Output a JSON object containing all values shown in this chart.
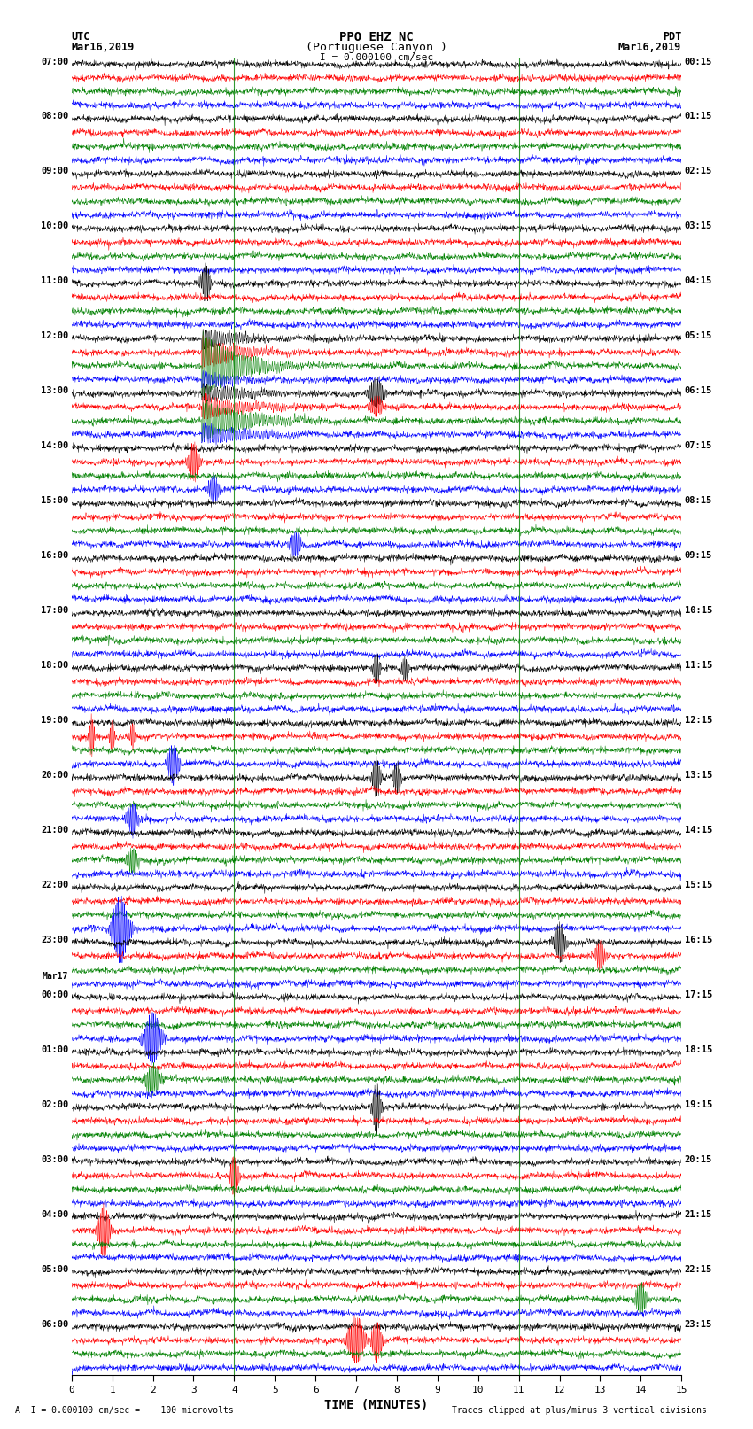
{
  "title_line1": "PPO EHZ NC",
  "title_line2": "(Portuguese Canyon )",
  "scale_label": "I = 0.000100 cm/sec",
  "left_header_line1": "UTC",
  "left_header_line2": "Mar16,2019",
  "right_header_line1": "PDT",
  "right_header_line2": "Mar16,2019",
  "bottom_label": "TIME (MINUTES)",
  "bottom_note": "A  I = 0.000100 cm/sec =    100 microvolts",
  "bottom_note2": "Traces clipped at plus/minus 3 vertical divisions",
  "xlim": [
    0,
    15
  ],
  "xticks": [
    0,
    1,
    2,
    3,
    4,
    5,
    6,
    7,
    8,
    9,
    10,
    11,
    12,
    13,
    14,
    15
  ],
  "background_color": "#ffffff",
  "trace_colors": [
    "black",
    "red",
    "green",
    "blue"
  ],
  "seed": 42,
  "title_fontsize": 10,
  "label_fontsize": 8,
  "tick_fontsize": 8
}
